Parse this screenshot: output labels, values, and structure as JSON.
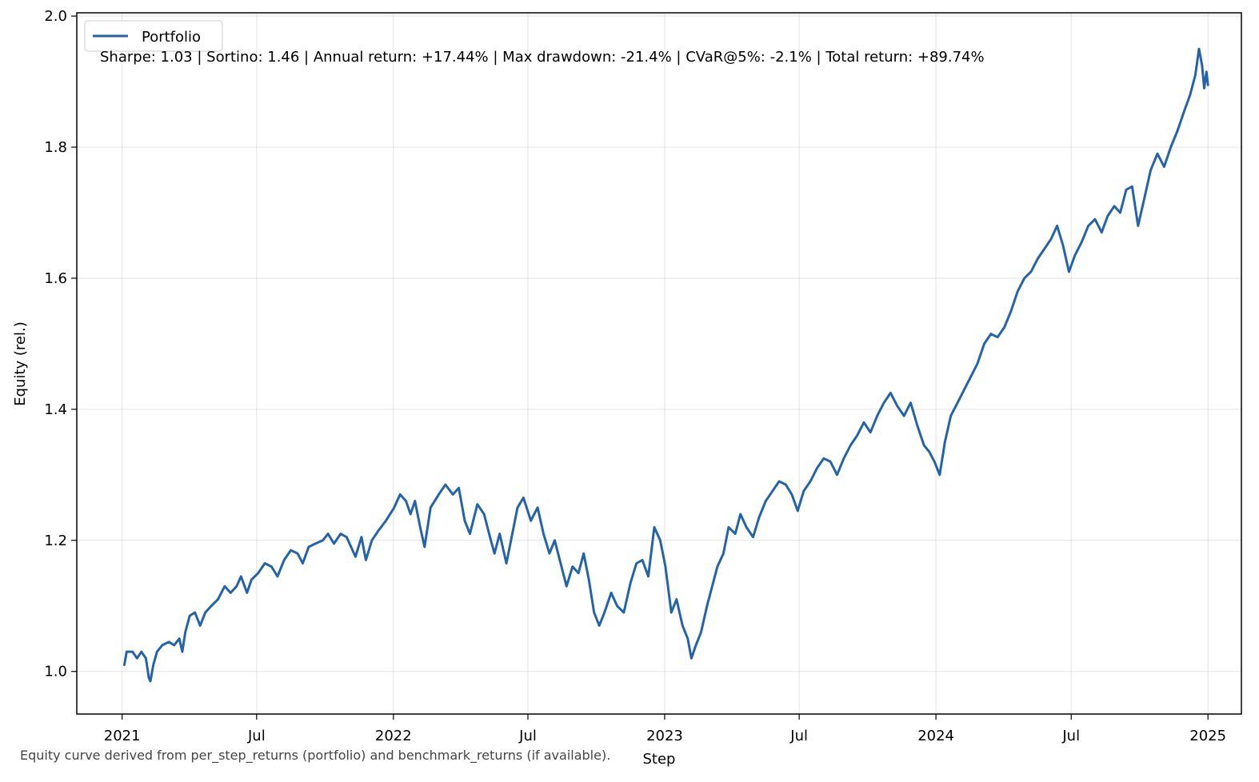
{
  "chart_data": {
    "type": "line",
    "xlabel": "Step",
    "ylabel": "Equity (rel.)",
    "ylim": [
      0.935,
      2.005
    ],
    "xlim": [
      "2020-11-01",
      "2025-02-15"
    ],
    "yticks": [
      1.0,
      1.2,
      1.4,
      1.6,
      1.8,
      2.0
    ],
    "ytick_labels": [
      "1.0",
      "1.2",
      "1.4",
      "1.6",
      "1.8",
      "2.0"
    ],
    "xticks": [
      "2021-01-01",
      "2021-07-01",
      "2022-01-01",
      "2022-07-01",
      "2023-01-01",
      "2023-07-01",
      "2024-01-01",
      "2024-07-01",
      "2025-01-01"
    ],
    "xtick_labels": [
      "2021",
      "Jul",
      "2022",
      "Jul",
      "2023",
      "Jul",
      "2024",
      "Jul",
      "2025"
    ],
    "grid": true,
    "legend_position": "top-left",
    "annotation": "Sharpe: 1.03 | Sortino: 1.46 | Annual return: +17.44% | Max drawdown: -21.4% | CVaR@5%: -2.1% | Total return: +89.74%",
    "footnote": "Equity curve derived from per_step_returns (portfolio) and benchmark_returns (if available).",
    "series": [
      {
        "name": "Portfolio",
        "color": "#2563a8",
        "points": [
          [
            "2021-01-04",
            1.01
          ],
          [
            "2021-01-07",
            1.03
          ],
          [
            "2021-01-15",
            1.03
          ],
          [
            "2021-01-21",
            1.02
          ],
          [
            "2021-01-27",
            1.03
          ],
          [
            "2021-02-02",
            1.02
          ],
          [
            "2021-02-06",
            0.99
          ],
          [
            "2021-02-08",
            0.985
          ],
          [
            "2021-02-12",
            1.01
          ],
          [
            "2021-02-17",
            1.03
          ],
          [
            "2021-02-24",
            1.04
          ],
          [
            "2021-03-05",
            1.045
          ],
          [
            "2021-03-12",
            1.04
          ],
          [
            "2021-03-19",
            1.05
          ],
          [
            "2021-03-23",
            1.03
          ],
          [
            "2021-03-27",
            1.06
          ],
          [
            "2021-04-02",
            1.085
          ],
          [
            "2021-04-09",
            1.09
          ],
          [
            "2021-04-16",
            1.07
          ],
          [
            "2021-04-23",
            1.09
          ],
          [
            "2021-05-01",
            1.1
          ],
          [
            "2021-05-10",
            1.11
          ],
          [
            "2021-05-19",
            1.13
          ],
          [
            "2021-05-27",
            1.12
          ],
          [
            "2021-06-04",
            1.13
          ],
          [
            "2021-06-10",
            1.145
          ],
          [
            "2021-06-18",
            1.12
          ],
          [
            "2021-06-24",
            1.14
          ],
          [
            "2021-07-03",
            1.15
          ],
          [
            "2021-07-12",
            1.165
          ],
          [
            "2021-07-21",
            1.16
          ],
          [
            "2021-07-29",
            1.145
          ],
          [
            "2021-08-07",
            1.17
          ],
          [
            "2021-08-16",
            1.185
          ],
          [
            "2021-08-25",
            1.18
          ],
          [
            "2021-09-01",
            1.165
          ],
          [
            "2021-09-09",
            1.19
          ],
          [
            "2021-09-18",
            1.195
          ],
          [
            "2021-09-28",
            1.2
          ],
          [
            "2021-10-05",
            1.21
          ],
          [
            "2021-10-13",
            1.195
          ],
          [
            "2021-10-22",
            1.21
          ],
          [
            "2021-10-30",
            1.205
          ],
          [
            "2021-11-05",
            1.19
          ],
          [
            "2021-11-11",
            1.175
          ],
          [
            "2021-11-19",
            1.205
          ],
          [
            "2021-11-25",
            1.17
          ],
          [
            "2021-12-03",
            1.2
          ],
          [
            "2021-12-12",
            1.215
          ],
          [
            "2021-12-22",
            1.23
          ],
          [
            "2022-01-02",
            1.25
          ],
          [
            "2022-01-10",
            1.27
          ],
          [
            "2022-01-18",
            1.26
          ],
          [
            "2022-01-24",
            1.24
          ],
          [
            "2022-01-30",
            1.26
          ],
          [
            "2022-02-06",
            1.22
          ],
          [
            "2022-02-12",
            1.19
          ],
          [
            "2022-02-20",
            1.25
          ],
          [
            "2022-03-03",
            1.27
          ],
          [
            "2022-03-12",
            1.285
          ],
          [
            "2022-03-22",
            1.27
          ],
          [
            "2022-03-30",
            1.28
          ],
          [
            "2022-04-07",
            1.23
          ],
          [
            "2022-04-14",
            1.21
          ],
          [
            "2022-04-24",
            1.255
          ],
          [
            "2022-05-03",
            1.24
          ],
          [
            "2022-05-11",
            1.205
          ],
          [
            "2022-05-17",
            1.18
          ],
          [
            "2022-05-24",
            1.21
          ],
          [
            "2022-06-02",
            1.165
          ],
          [
            "2022-06-10",
            1.21
          ],
          [
            "2022-06-17",
            1.25
          ],
          [
            "2022-06-25",
            1.265
          ],
          [
            "2022-07-05",
            1.23
          ],
          [
            "2022-07-14",
            1.25
          ],
          [
            "2022-07-22",
            1.21
          ],
          [
            "2022-07-30",
            1.18
          ],
          [
            "2022-08-06",
            1.2
          ],
          [
            "2022-08-14",
            1.165
          ],
          [
            "2022-08-22",
            1.13
          ],
          [
            "2022-08-30",
            1.16
          ],
          [
            "2022-09-07",
            1.15
          ],
          [
            "2022-09-14",
            1.18
          ],
          [
            "2022-09-21",
            1.14
          ],
          [
            "2022-09-28",
            1.09
          ],
          [
            "2022-10-05",
            1.07
          ],
          [
            "2022-10-12",
            1.09
          ],
          [
            "2022-10-21",
            1.12
          ],
          [
            "2022-10-29",
            1.1
          ],
          [
            "2022-11-07",
            1.09
          ],
          [
            "2022-11-16",
            1.135
          ],
          [
            "2022-11-24",
            1.165
          ],
          [
            "2022-12-02",
            1.17
          ],
          [
            "2022-12-10",
            1.145
          ],
          [
            "2022-12-18",
            1.22
          ],
          [
            "2022-12-26",
            1.2
          ],
          [
            "2023-01-02",
            1.16
          ],
          [
            "2023-01-10",
            1.09
          ],
          [
            "2023-01-17",
            1.11
          ],
          [
            "2023-01-25",
            1.07
          ],
          [
            "2023-02-01",
            1.05
          ],
          [
            "2023-02-06",
            1.02
          ],
          [
            "2023-02-12",
            1.04
          ],
          [
            "2023-02-19",
            1.06
          ],
          [
            "2023-02-27",
            1.1
          ],
          [
            "2023-03-06",
            1.13
          ],
          [
            "2023-03-13",
            1.16
          ],
          [
            "2023-03-21",
            1.18
          ],
          [
            "2023-03-28",
            1.22
          ],
          [
            "2023-04-06",
            1.21
          ],
          [
            "2023-04-13",
            1.24
          ],
          [
            "2023-04-21",
            1.22
          ],
          [
            "2023-04-30",
            1.205
          ],
          [
            "2023-05-08",
            1.235
          ],
          [
            "2023-05-17",
            1.26
          ],
          [
            "2023-05-26",
            1.275
          ],
          [
            "2023-06-04",
            1.29
          ],
          [
            "2023-06-13",
            1.285
          ],
          [
            "2023-06-21",
            1.27
          ],
          [
            "2023-06-29",
            1.245
          ],
          [
            "2023-07-07",
            1.275
          ],
          [
            "2023-07-16",
            1.29
          ],
          [
            "2023-07-25",
            1.31
          ],
          [
            "2023-08-03",
            1.325
          ],
          [
            "2023-08-12",
            1.32
          ],
          [
            "2023-08-21",
            1.3
          ],
          [
            "2023-08-30",
            1.325
          ],
          [
            "2023-09-08",
            1.345
          ],
          [
            "2023-09-17",
            1.36
          ],
          [
            "2023-09-26",
            1.38
          ],
          [
            "2023-10-05",
            1.365
          ],
          [
            "2023-10-14",
            1.39
          ],
          [
            "2023-10-23",
            1.41
          ],
          [
            "2023-11-01",
            1.425
          ],
          [
            "2023-11-10",
            1.405
          ],
          [
            "2023-11-19",
            1.39
          ],
          [
            "2023-11-28",
            1.41
          ],
          [
            "2023-12-07",
            1.375
          ],
          [
            "2023-12-16",
            1.345
          ],
          [
            "2023-12-23",
            1.335
          ],
          [
            "2023-12-30",
            1.32
          ],
          [
            "2024-01-06",
            1.3
          ],
          [
            "2024-01-13",
            1.35
          ],
          [
            "2024-01-21",
            1.39
          ],
          [
            "2024-01-30",
            1.41
          ],
          [
            "2024-02-08",
            1.43
          ],
          [
            "2024-02-17",
            1.45
          ],
          [
            "2024-02-26",
            1.47
          ],
          [
            "2024-03-06",
            1.5
          ],
          [
            "2024-03-15",
            1.515
          ],
          [
            "2024-03-24",
            1.51
          ],
          [
            "2024-04-02",
            1.525
          ],
          [
            "2024-04-11",
            1.55
          ],
          [
            "2024-04-20",
            1.58
          ],
          [
            "2024-04-29",
            1.6
          ],
          [
            "2024-05-08",
            1.61
          ],
          [
            "2024-05-17",
            1.63
          ],
          [
            "2024-05-26",
            1.645
          ],
          [
            "2024-06-04",
            1.66
          ],
          [
            "2024-06-12",
            1.68
          ],
          [
            "2024-06-20",
            1.65
          ],
          [
            "2024-06-28",
            1.61
          ],
          [
            "2024-07-06",
            1.635
          ],
          [
            "2024-07-15",
            1.655
          ],
          [
            "2024-07-24",
            1.68
          ],
          [
            "2024-08-02",
            1.69
          ],
          [
            "2024-08-11",
            1.67
          ],
          [
            "2024-08-19",
            1.695
          ],
          [
            "2024-08-28",
            1.71
          ],
          [
            "2024-09-05",
            1.7
          ],
          [
            "2024-09-13",
            1.735
          ],
          [
            "2024-09-21",
            1.74
          ],
          [
            "2024-09-29",
            1.68
          ],
          [
            "2024-10-07",
            1.72
          ],
          [
            "2024-10-16",
            1.765
          ],
          [
            "2024-10-25",
            1.79
          ],
          [
            "2024-11-03",
            1.77
          ],
          [
            "2024-11-12",
            1.8
          ],
          [
            "2024-11-21",
            1.825
          ],
          [
            "2024-11-30",
            1.855
          ],
          [
            "2024-12-08",
            1.88
          ],
          [
            "2024-12-15",
            1.91
          ],
          [
            "2024-12-20",
            1.95
          ],
          [
            "2024-12-24",
            1.925
          ],
          [
            "2024-12-27",
            1.89
          ],
          [
            "2024-12-30",
            1.915
          ],
          [
            "2025-01-01",
            1.895
          ]
        ]
      }
    ]
  }
}
